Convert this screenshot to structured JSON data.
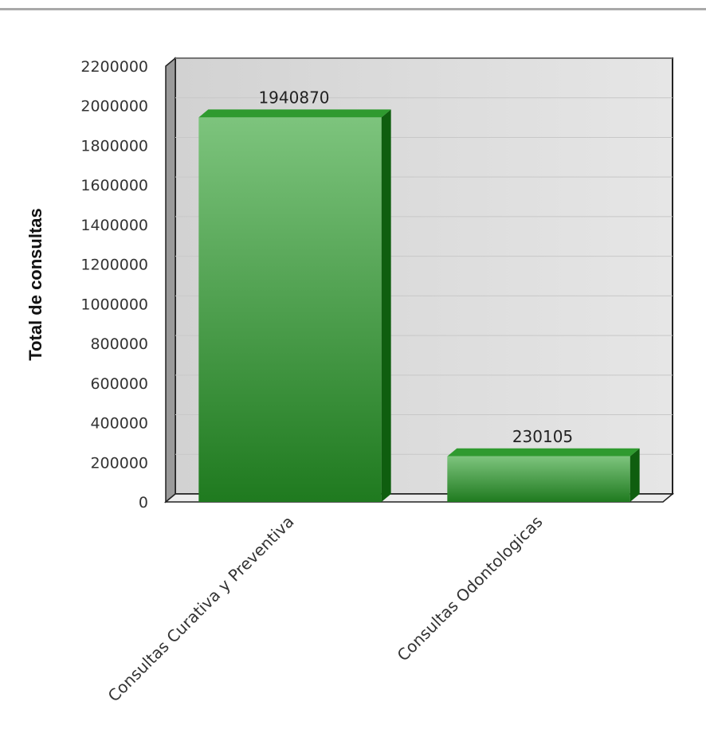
{
  "chart_data": {
    "type": "bar",
    "title": "",
    "xlabel": "",
    "ylabel": "Total de consultas",
    "ylim": [
      0,
      2200000
    ],
    "ytick_values": [
      0,
      200000,
      400000,
      600000,
      800000,
      1000000,
      1200000,
      1400000,
      1600000,
      1800000,
      2000000,
      2200000
    ],
    "ytick_labels": [
      "0",
      "200000",
      "400000",
      "600000",
      "800000",
      "1000000",
      "1200000",
      "1400000",
      "1600000",
      "1800000",
      "2000000",
      "2200000"
    ],
    "categories": [
      "Consultas Curativa y Preventiva",
      "Consultas Odontologicas"
    ],
    "values": [
      1940870,
      230105
    ],
    "data_labels": [
      "1940870",
      "230105"
    ],
    "grid": true,
    "style_3d": true,
    "colors": {
      "bar_top": "#7dc47d",
      "bar_bottom": "#1f7a1f",
      "bar_side": "#0f5e0f",
      "bar_cap": "#2f9a2f",
      "plot_bg": "#dcdcdc",
      "grid": "#c8c8c8"
    }
  }
}
